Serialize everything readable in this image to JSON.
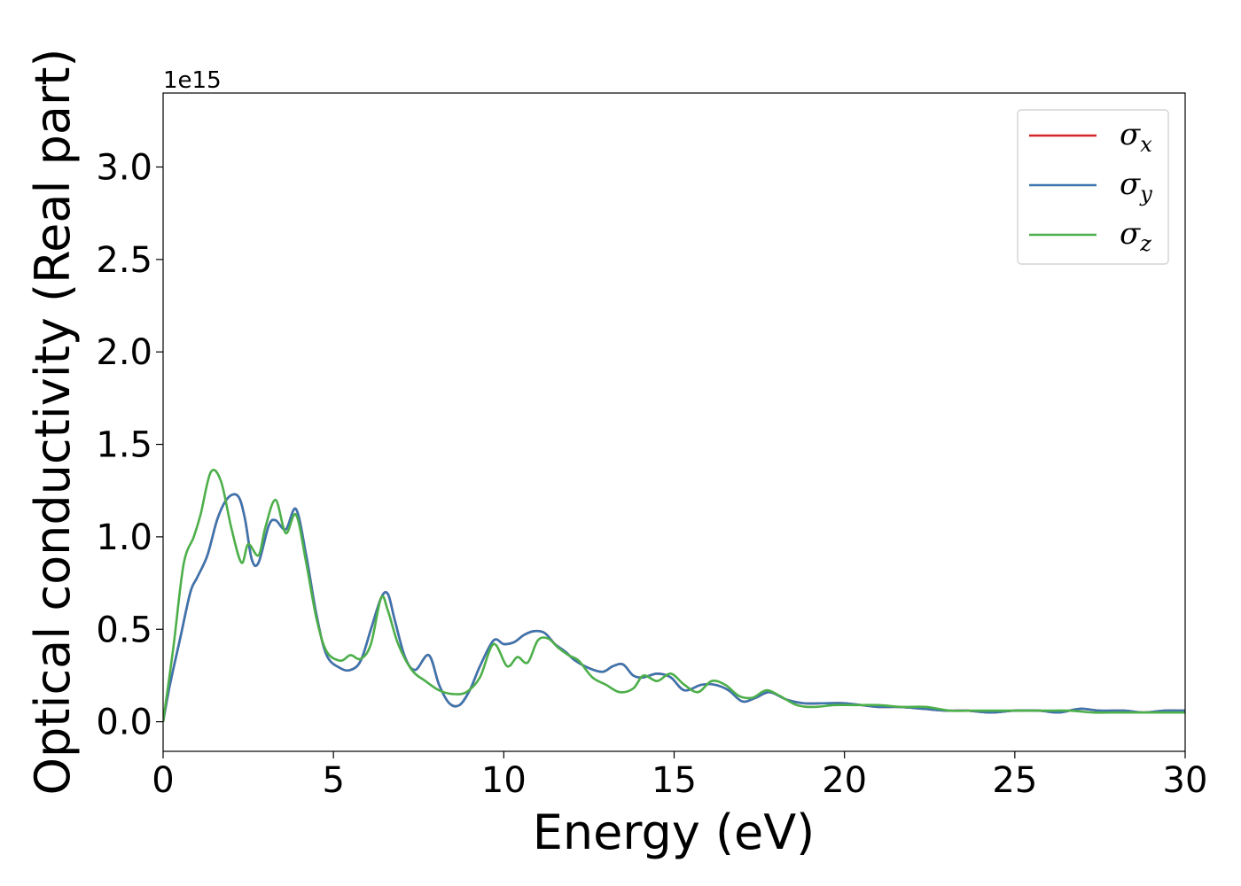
{
  "chart_data": {
    "type": "line",
    "xlabel": "Energy (eV)",
    "ylabel": "Optical conductivity (Real part)",
    "y_offset_text": "1e15",
    "xlim": [
      0,
      30
    ],
    "ylim": [
      -0.16,
      3.4
    ],
    "x_ticks": [
      0,
      5,
      10,
      15,
      20,
      25,
      30
    ],
    "x_tick_labels": [
      "0",
      "5",
      "10",
      "15",
      "20",
      "25",
      "30"
    ],
    "y_ticks": [
      0.0,
      0.5,
      1.0,
      1.5,
      2.0,
      2.5,
      3.0
    ],
    "y_tick_labels": [
      "0.0",
      "0.5",
      "1.0",
      "1.5",
      "2.0",
      "2.5",
      "3.0"
    ],
    "grid": false,
    "legend_position": "top-right",
    "legend": [
      {
        "symbol": "σ",
        "sub": "x",
        "color": "#d62728"
      },
      {
        "symbol": "σ",
        "sub": "y",
        "color": "#3b75af"
      },
      {
        "symbol": "σ",
        "sub": "z",
        "color": "#4daf4a"
      }
    ],
    "series": [
      {
        "color": "#d62728",
        "x": [
          0,
          0.2,
          0.5,
          0.8,
          1.0,
          1.3,
          1.6,
          1.9,
          2.2,
          2.4,
          2.6,
          2.8,
          3.1,
          3.3,
          3.6,
          3.9,
          4.2,
          4.5,
          4.8,
          5.2,
          5.5,
          5.8,
          6.1,
          6.4,
          6.6,
          6.8,
          7.1,
          7.4,
          7.8,
          8.1,
          8.4,
          8.7,
          9.0,
          9.3,
          9.7,
          10.0,
          10.3,
          10.6,
          10.9,
          11.2,
          11.5,
          11.8,
          12.1,
          12.5,
          12.9,
          13.2,
          13.5,
          13.8,
          14.1,
          14.5,
          14.9,
          15.3,
          15.8,
          16.2,
          16.6,
          17.0,
          17.4,
          17.8,
          18.3,
          18.8,
          19.4,
          20.0,
          20.5,
          21.0,
          21.6,
          22.3,
          23.0,
          23.6,
          24.3,
          25.0,
          25.7,
          26.3,
          26.9,
          27.5,
          28.2,
          28.8,
          29.4,
          30.0
        ],
        "values": [
          0.0,
          0.2,
          0.45,
          0.7,
          0.78,
          0.9,
          1.1,
          1.21,
          1.22,
          1.1,
          0.88,
          0.86,
          1.06,
          1.09,
          1.04,
          1.15,
          0.9,
          0.58,
          0.36,
          0.29,
          0.28,
          0.33,
          0.5,
          0.67,
          0.69,
          0.55,
          0.35,
          0.28,
          0.36,
          0.2,
          0.1,
          0.09,
          0.17,
          0.3,
          0.44,
          0.42,
          0.43,
          0.47,
          0.49,
          0.48,
          0.42,
          0.38,
          0.33,
          0.29,
          0.27,
          0.3,
          0.31,
          0.25,
          0.24,
          0.26,
          0.24,
          0.17,
          0.2,
          0.2,
          0.17,
          0.11,
          0.13,
          0.16,
          0.12,
          0.1,
          0.1,
          0.1,
          0.09,
          0.08,
          0.08,
          0.07,
          0.06,
          0.06,
          0.05,
          0.06,
          0.06,
          0.05,
          0.07,
          0.06,
          0.06,
          0.05,
          0.06,
          0.06
        ]
      },
      {
        "color": "#3b75af",
        "x": [
          0,
          0.2,
          0.5,
          0.8,
          1.0,
          1.3,
          1.6,
          1.9,
          2.2,
          2.4,
          2.6,
          2.8,
          3.1,
          3.3,
          3.6,
          3.9,
          4.2,
          4.5,
          4.8,
          5.2,
          5.5,
          5.8,
          6.1,
          6.4,
          6.6,
          6.8,
          7.1,
          7.4,
          7.8,
          8.1,
          8.4,
          8.7,
          9.0,
          9.3,
          9.7,
          10.0,
          10.3,
          10.6,
          10.9,
          11.2,
          11.5,
          11.8,
          12.1,
          12.5,
          12.9,
          13.2,
          13.5,
          13.8,
          14.1,
          14.5,
          14.9,
          15.3,
          15.8,
          16.2,
          16.6,
          17.0,
          17.4,
          17.8,
          18.3,
          18.8,
          19.4,
          20.0,
          20.5,
          21.0,
          21.6,
          22.3,
          23.0,
          23.6,
          24.3,
          25.0,
          25.7,
          26.3,
          26.9,
          27.5,
          28.2,
          28.8,
          29.4,
          30.0
        ],
        "values": [
          0.0,
          0.2,
          0.45,
          0.7,
          0.78,
          0.9,
          1.1,
          1.21,
          1.22,
          1.1,
          0.88,
          0.86,
          1.06,
          1.09,
          1.04,
          1.15,
          0.9,
          0.58,
          0.36,
          0.29,
          0.28,
          0.33,
          0.5,
          0.67,
          0.69,
          0.55,
          0.35,
          0.28,
          0.36,
          0.2,
          0.1,
          0.09,
          0.17,
          0.3,
          0.44,
          0.42,
          0.43,
          0.47,
          0.49,
          0.48,
          0.42,
          0.38,
          0.33,
          0.29,
          0.27,
          0.3,
          0.31,
          0.25,
          0.24,
          0.26,
          0.24,
          0.17,
          0.2,
          0.2,
          0.17,
          0.11,
          0.13,
          0.16,
          0.12,
          0.1,
          0.1,
          0.1,
          0.09,
          0.08,
          0.08,
          0.07,
          0.06,
          0.06,
          0.05,
          0.06,
          0.06,
          0.05,
          0.07,
          0.06,
          0.06,
          0.05,
          0.06,
          0.06
        ]
      },
      {
        "color": "#4daf4a",
        "x": [
          0,
          0.3,
          0.6,
          0.9,
          1.1,
          1.4,
          1.7,
          2.0,
          2.3,
          2.5,
          2.8,
          3.0,
          3.3,
          3.6,
          3.9,
          4.2,
          4.5,
          4.8,
          5.2,
          5.5,
          5.8,
          6.1,
          6.4,
          6.6,
          6.9,
          7.3,
          7.7,
          8.1,
          8.5,
          8.9,
          9.3,
          9.7,
          10.1,
          10.4,
          10.7,
          11.0,
          11.3,
          11.6,
          11.9,
          12.2,
          12.6,
          13.0,
          13.4,
          13.8,
          14.1,
          14.5,
          14.9,
          15.3,
          15.7,
          16.1,
          16.5,
          16.9,
          17.3,
          17.7,
          18.1,
          18.6,
          19.1,
          19.7,
          20.3,
          21.0,
          21.7,
          22.4,
          23.1,
          23.8,
          24.5,
          25.2,
          25.9,
          26.6,
          27.3,
          28.0,
          28.7,
          29.4,
          30.0
        ],
        "values": [
          0.0,
          0.4,
          0.85,
          1.0,
          1.12,
          1.35,
          1.3,
          1.05,
          0.86,
          0.96,
          0.9,
          1.05,
          1.2,
          1.02,
          1.12,
          0.86,
          0.56,
          0.38,
          0.33,
          0.36,
          0.34,
          0.42,
          0.67,
          0.6,
          0.42,
          0.28,
          0.22,
          0.17,
          0.15,
          0.16,
          0.24,
          0.42,
          0.3,
          0.35,
          0.32,
          0.44,
          0.45,
          0.4,
          0.36,
          0.33,
          0.24,
          0.2,
          0.16,
          0.18,
          0.25,
          0.22,
          0.26,
          0.2,
          0.16,
          0.22,
          0.2,
          0.14,
          0.13,
          0.17,
          0.14,
          0.09,
          0.08,
          0.09,
          0.09,
          0.09,
          0.08,
          0.08,
          0.06,
          0.06,
          0.06,
          0.06,
          0.06,
          0.06,
          0.05,
          0.05,
          0.05,
          0.05,
          0.05
        ]
      }
    ]
  }
}
